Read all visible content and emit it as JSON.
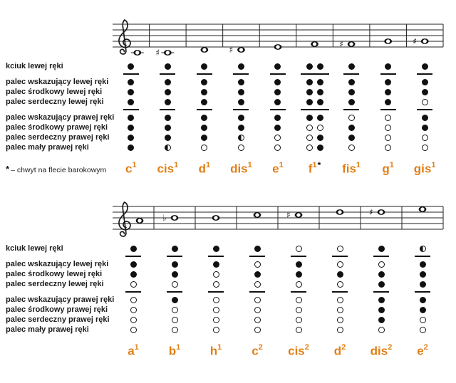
{
  "colors": {
    "note_name_orange": "#E17E15",
    "ink": "#111111"
  },
  "labels": {
    "fingers": [
      "kciuk lewej ręki",
      "palec wskazujący lewej ręki",
      "palec środkowy lewej ręki",
      "palec serdeczny lewej ręki",
      "palec wskazujący prawej ręki",
      "palec środkowy prawej ręki",
      "palec serdeczny prawej ręki",
      "palec mały prawej ręki"
    ],
    "footnote_star": "*",
    "footnote_text": "– chwyt na flecie barokowym"
  },
  "chart_data": {
    "type": "table",
    "legend_note": "dots: f = hole covered (filled), o = hole open, h = hole half-covered",
    "sections": [
      {
        "clef": "treble",
        "notes": [
          {
            "base": "c",
            "sup": "1",
            "accidental": null,
            "staff_step": -2,
            "fingering": [
              "f",
              "f",
              "f",
              "f",
              "f",
              "f",
              "f",
              "f"
            ]
          },
          {
            "base": "cis",
            "sup": "1",
            "accidental": "sharp",
            "staff_step": -2,
            "fingering": [
              "f",
              "f",
              "f",
              "f",
              "f",
              "f",
              "f",
              "h"
            ]
          },
          {
            "base": "d",
            "sup": "1",
            "accidental": null,
            "staff_step": -1,
            "fingering": [
              "f",
              "f",
              "f",
              "f",
              "f",
              "f",
              "f",
              "o"
            ]
          },
          {
            "base": "dis",
            "sup": "1",
            "accidental": "sharp",
            "staff_step": -1,
            "fingering": [
              "f",
              "f",
              "f",
              "f",
              "f",
              "f",
              "h",
              "o"
            ]
          },
          {
            "base": "e",
            "sup": "1",
            "accidental": null,
            "staff_step": 0,
            "fingering": [
              "f",
              "f",
              "f",
              "f",
              "f",
              "f",
              "o",
              "o"
            ]
          },
          {
            "base": "f",
            "sup": "1",
            "accidental": null,
            "staff_step": 1,
            "starred": true,
            "fingering": [
              "f",
              "f",
              "f",
              "f",
              "f",
              "o",
              "o",
              "o"
            ],
            "alt_fingering": [
              "f",
              "f",
              "f",
              "f",
              "f",
              "o",
              "f",
              "f"
            ]
          },
          {
            "base": "fis",
            "sup": "1",
            "accidental": "sharp",
            "staff_step": 1,
            "fingering": [
              "f",
              "f",
              "f",
              "f",
              "o",
              "f",
              "f",
              "o"
            ]
          },
          {
            "base": "g",
            "sup": "1",
            "accidental": null,
            "staff_step": 2,
            "fingering": [
              "f",
              "f",
              "f",
              "f",
              "o",
              "o",
              "o",
              "o"
            ]
          },
          {
            "base": "gis",
            "sup": "1",
            "accidental": "sharp",
            "staff_step": 2,
            "fingering": [
              "f",
              "f",
              "f",
              "o",
              "f",
              "f",
              "o",
              "o"
            ]
          }
        ]
      },
      {
        "clef": "treble",
        "notes": [
          {
            "base": "a",
            "sup": "1",
            "accidental": null,
            "staff_step": 3,
            "fingering": [
              "f",
              "f",
              "f",
              "o",
              "o",
              "o",
              "o",
              "o"
            ]
          },
          {
            "base": "b",
            "sup": "1",
            "accidental": "flat",
            "staff_step": 4,
            "fingering": [
              "f",
              "f",
              "f",
              "o",
              "f",
              "o",
              "o",
              "o"
            ]
          },
          {
            "base": "h",
            "sup": "1",
            "accidental": null,
            "staff_step": 4,
            "fingering": [
              "f",
              "f",
              "o",
              "o",
              "o",
              "o",
              "o",
              "o"
            ]
          },
          {
            "base": "c",
            "sup": "2",
            "accidental": null,
            "staff_step": 5,
            "fingering": [
              "f",
              "o",
              "f",
              "o",
              "o",
              "o",
              "o",
              "o"
            ]
          },
          {
            "base": "cis",
            "sup": "2",
            "accidental": "sharp",
            "staff_step": 5,
            "fingering": [
              "o",
              "f",
              "f",
              "o",
              "o",
              "o",
              "o",
              "o"
            ]
          },
          {
            "base": "d",
            "sup": "2",
            "accidental": null,
            "staff_step": 6,
            "fingering": [
              "o",
              "o",
              "f",
              "o",
              "o",
              "o",
              "o",
              "o"
            ]
          },
          {
            "base": "dis",
            "sup": "2",
            "accidental": "sharp",
            "staff_step": 6,
            "fingering": [
              "f",
              "o",
              "f",
              "f",
              "f",
              "f",
              "f",
              "o"
            ]
          },
          {
            "base": "e",
            "sup": "2",
            "accidental": null,
            "staff_step": 7,
            "fingering": [
              "h",
              "f",
              "f",
              "f",
              "f",
              "f",
              "o",
              "o"
            ]
          }
        ]
      }
    ]
  }
}
